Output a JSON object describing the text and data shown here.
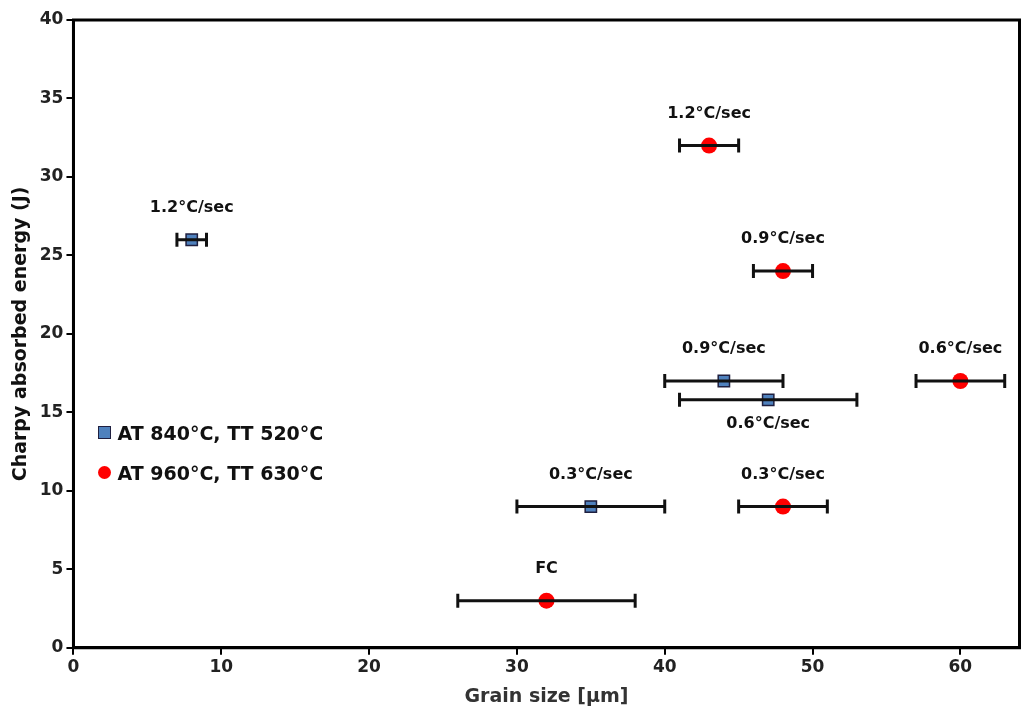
{
  "chart_data": {
    "type": "scatter",
    "xlabel": "Grain size [µm]",
    "ylabel": "Charpy absorbed energy (J)",
    "xlim": [
      0,
      64
    ],
    "xticks": [
      0,
      10,
      20,
      30,
      40,
      50,
      60
    ],
    "ylim": [
      0,
      40
    ],
    "yticks": [
      0,
      5,
      10,
      15,
      20,
      25,
      30,
      35,
      40
    ],
    "grid": false,
    "legend": "left",
    "series": [
      {
        "name": "AT 840°C, TT 520°C",
        "color": "#4f81bd",
        "marker": "square",
        "x": [
          8,
          44,
          47,
          35
        ],
        "values": [
          26,
          17,
          15.8,
          9
        ],
        "xerrors": [
          1,
          4,
          6,
          5
        ]
      },
      {
        "name": "AT 960°C, TT 630°C",
        "color": "#ff0000",
        "marker": "circle",
        "x": [
          43,
          48,
          60,
          48,
          32
        ],
        "values": [
          32,
          24,
          17,
          9,
          3
        ],
        "xerrors": [
          2,
          2,
          3,
          3,
          6
        ]
      }
    ],
    "annotations": [
      {
        "text": "1.2°C/sec",
        "x": 8,
        "y": 26
      },
      {
        "text": "0.9°C/sec",
        "x": 44,
        "y": 17
      },
      {
        "text": "0.6°C/sec",
        "x": 47,
        "y": 15.8
      },
      {
        "text": "0.3°C/sec",
        "x": 35,
        "y": 9
      },
      {
        "text": "1.2°C/sec",
        "x": 43,
        "y": 32
      },
      {
        "text": "0.9°C/sec",
        "x": 48,
        "y": 24
      },
      {
        "text": "0.6°C/sec",
        "x": 60,
        "y": 17
      },
      {
        "text": "0.3°C/sec",
        "x": 48,
        "y": 9
      },
      {
        "text": "FC",
        "x": 32,
        "y": 3
      }
    ]
  }
}
